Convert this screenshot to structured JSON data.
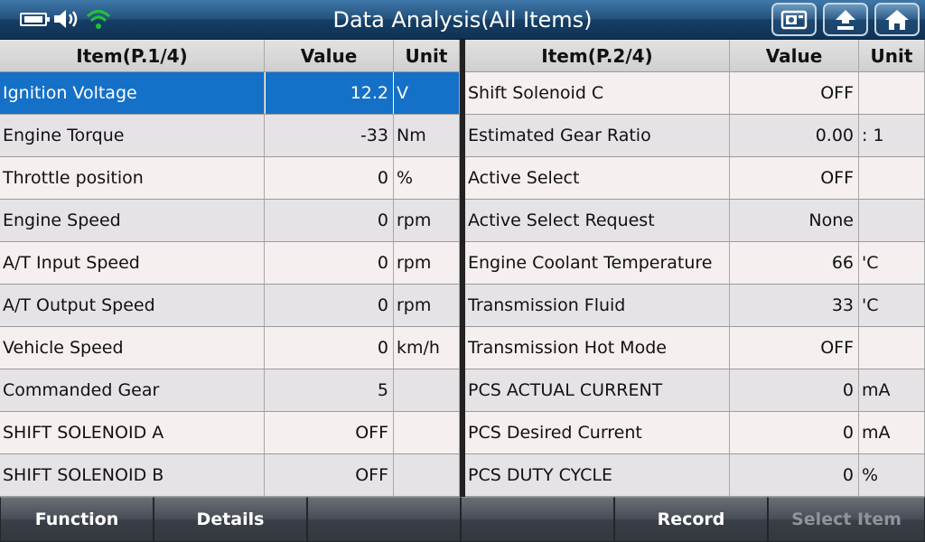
{
  "header": {
    "title": "Data Analysis(All Items)",
    "status_icons": [
      "battery-icon",
      "speaker-icon",
      "wifi-icon"
    ],
    "nav_buttons": [
      "screenshot-icon",
      "back-icon",
      "home-icon"
    ]
  },
  "left_table": {
    "headers": {
      "item": "Item(P.1/4)",
      "value": "Value",
      "unit": "Unit"
    },
    "rows": [
      {
        "item": "Ignition Voltage",
        "value": "12.2",
        "unit": "V",
        "selected": true
      },
      {
        "item": "Engine Torque",
        "value": "-33",
        "unit": "Nm"
      },
      {
        "item": "Throttle position",
        "value": "0",
        "unit": "%"
      },
      {
        "item": "Engine Speed",
        "value": "0",
        "unit": "rpm"
      },
      {
        "item": "A/T Input Speed",
        "value": "0",
        "unit": "rpm"
      },
      {
        "item": "A/T Output Speed",
        "value": "0",
        "unit": "rpm"
      },
      {
        "item": "Vehicle Speed",
        "value": "0",
        "unit": "km/h"
      },
      {
        "item": "Commanded Gear",
        "value": "5",
        "unit": ""
      },
      {
        "item": "SHIFT SOLENOID A",
        "value": "OFF",
        "unit": ""
      },
      {
        "item": "SHIFT SOLENOID B",
        "value": "OFF",
        "unit": ""
      }
    ]
  },
  "right_table": {
    "headers": {
      "item": "Item(P.2/4)",
      "value": "Value",
      "unit": "Unit"
    },
    "rows": [
      {
        "item": "Shift Solenoid C",
        "value": "OFF",
        "unit": ""
      },
      {
        "item": "Estimated Gear Ratio",
        "value": "0.00",
        "unit": ": 1"
      },
      {
        "item": "Active Select",
        "value": "OFF",
        "unit": ""
      },
      {
        "item": "Active Select Request",
        "value": "None",
        "unit": ""
      },
      {
        "item": "Engine Coolant Temperature",
        "value": "66",
        "unit": "'C"
      },
      {
        "item": "Transmission Fluid",
        "value": "33",
        "unit": "'C"
      },
      {
        "item": "Transmission Hot Mode",
        "value": "OFF",
        "unit": ""
      },
      {
        "item": "PCS ACTUAL CURRENT",
        "value": "0",
        "unit": "mA"
      },
      {
        "item": "PCS Desired Current",
        "value": "0",
        "unit": "mA"
      },
      {
        "item": "PCS DUTY CYCLE",
        "value": "0",
        "unit": "%"
      }
    ]
  },
  "footer": {
    "buttons": [
      {
        "label": "Function",
        "enabled": true
      },
      {
        "label": "Details",
        "enabled": true
      },
      {
        "label": "",
        "enabled": true
      },
      {
        "label": "",
        "enabled": true
      },
      {
        "label": "Record",
        "enabled": true
      },
      {
        "label": "Select Item",
        "enabled": false
      }
    ]
  },
  "colors": {
    "selected_row": "#1570c8",
    "title_bar": "#24527e",
    "wifi": "#22c03a"
  }
}
